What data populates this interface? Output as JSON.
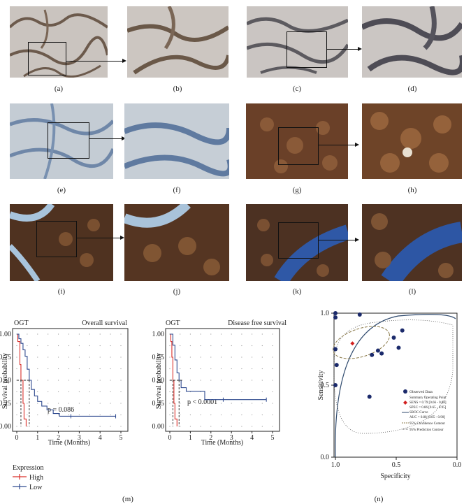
{
  "panel_labels": {
    "a": "(a)",
    "b": "(b)",
    "c": "(c)",
    "d": "(d)",
    "e": "(e)",
    "f": "(f)",
    "g": "(g)",
    "h": "(h)",
    "i": "(i)",
    "j": "(j)",
    "k": "(k)",
    "l": "(l)",
    "m": "(m)",
    "n": "(n)"
  },
  "colors": {
    "tissue_brown": "#7a5238",
    "stain_blue": "#5b7fb5",
    "bg_light": "#c9c4c0",
    "km_high": "#d9302b",
    "km_low": "#2f4a8f",
    "sroc_curve": "#2f4a6e",
    "observed": "#1b2a6b",
    "summary_point": "#d22020"
  },
  "km": [
    {
      "gene": "OGT",
      "title": "Overall survival",
      "pvalue": "p = 0.086",
      "ylabel": "Survival probability",
      "xlabel": "Time (Months)",
      "xticks": [
        "0",
        "1",
        "2",
        "3",
        "4",
        "5"
      ],
      "yticks": [
        "0.00",
        "0.25",
        "0.50",
        "0.75",
        "1.00"
      ]
    },
    {
      "gene": "OGT",
      "title": "Disease free survival",
      "pvalue": "p < 0.0001",
      "ylabel": "Survival probability",
      "xlabel": "Time (Months)",
      "xticks": [
        "0",
        "1",
        "2",
        "3",
        "4",
        "5"
      ],
      "yticks": [
        "0.00",
        "0.25",
        "0.50",
        "0.75",
        "1.00"
      ]
    }
  ],
  "legend": {
    "title": "Expression",
    "items": [
      "High",
      "Low"
    ]
  },
  "chart_data": [
    {
      "type": "line",
      "title": "Overall survival",
      "xlabel": "Time (Months)",
      "ylabel": "Survival probability",
      "xlim": [
        0,
        5
      ],
      "ylim": [
        0,
        1
      ],
      "series": [
        {
          "name": "High",
          "x": [
            0,
            0.05,
            0.15,
            0.2,
            0.3,
            0.35,
            0.45
          ],
          "y": [
            1,
            0.92,
            0.67,
            0.5,
            0.25,
            0.08,
            0.0
          ]
        },
        {
          "name": "Low",
          "x": [
            0,
            0.1,
            0.2,
            0.3,
            0.4,
            0.5,
            0.6,
            0.7,
            0.85,
            1.0,
            1.2,
            1.45,
            1.75,
            2.05,
            2.6,
            4.75
          ],
          "y": [
            1,
            0.95,
            0.9,
            0.83,
            0.76,
            0.62,
            0.5,
            0.4,
            0.33,
            0.27,
            0.22,
            0.18,
            0.14,
            0.11,
            0.11,
            0.11
          ]
        }
      ]
    },
    {
      "type": "line",
      "title": "Disease free survival",
      "xlabel": "Time (Months)",
      "ylabel": "Survival probability",
      "xlim": [
        0,
        5
      ],
      "ylim": [
        0,
        1
      ],
      "series": [
        {
          "name": "High",
          "x": [
            0,
            0.05,
            0.1,
            0.15,
            0.2,
            0.25,
            0.35
          ],
          "y": [
            1,
            0.92,
            0.75,
            0.5,
            0.25,
            0.08,
            0.0
          ]
        },
        {
          "name": "Low",
          "x": [
            0,
            0.15,
            0.25,
            0.35,
            0.45,
            0.55,
            0.8,
            1.15,
            1.7,
            2.6,
            4.7
          ],
          "y": [
            1,
            0.88,
            0.72,
            0.58,
            0.5,
            0.42,
            0.38,
            0.38,
            0.29,
            0.29,
            0.29
          ]
        }
      ]
    },
    {
      "type": "scatter",
      "xlabel": "Specificity",
      "ylabel": "Sensitivity",
      "xlim": [
        1.0,
        0.0
      ],
      "ylim": [
        0.0,
        1.0
      ],
      "xticks": [
        "1.0",
        "0.5",
        "0.0"
      ],
      "yticks": [
        "0.0",
        "0.5",
        "1.0"
      ],
      "observed": {
        "x": [
          1.0,
          1.0,
          1.0,
          0.99,
          1.0,
          0.8,
          0.45,
          0.52,
          0.48,
          0.62,
          0.65,
          0.7,
          0.72
        ],
        "y": [
          1.0,
          0.97,
          0.75,
          0.64,
          0.5,
          0.99,
          0.88,
          0.83,
          0.76,
          0.72,
          0.74,
          0.71,
          0.42
        ]
      },
      "summary_point": {
        "x": 0.86,
        "y": 0.79
      },
      "legend": [
        "Observed Data",
        "Summary Operating Point",
        "SENS = 0.79 [0.66 - 0.88]",
        "SPEC = 0.86 [0.65 - 0.95]",
        "SROC Curve",
        "AUC = 0.88 [0.85 - 0.90]",
        "95% Confidence Contour",
        "95% Prediction Contour"
      ]
    }
  ]
}
